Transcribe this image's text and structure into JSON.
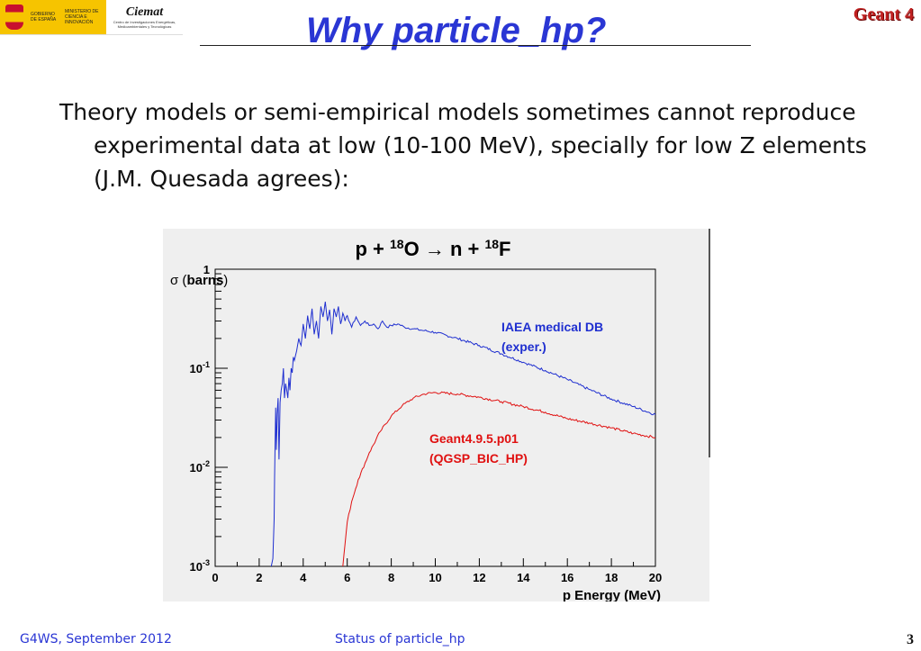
{
  "header": {
    "logo_gob_text": "GOBIERNO DE ESPAÑA",
    "logo_min_text": "MINISTERIO DE CIENCIA E INNOVACIÓN",
    "logo_ciemat": "Ciemat",
    "logo_ciemat_sub": "Centro de Investigaciones Energéticas, Medioambientales y Tecnológicas",
    "title": "Why particle_hp?",
    "brand": "Geant 4"
  },
  "body": {
    "text": "Theory models or semi-empirical models sometimes cannot reproduce experimental data at low (10-100 MeV), specially for low Z elements (J.M. Quesada agrees):"
  },
  "footer": {
    "left": "G4WS, September 2012",
    "center": "Status of particle_hp",
    "page": "3"
  },
  "colors": {
    "title": "#2a36d4",
    "brand": "#c02020",
    "exp": "#1f2fd0",
    "sim": "#e01010",
    "footer": "#2a36d4"
  },
  "chart_data": {
    "type": "line",
    "title": "p + 18O → n + 18F",
    "title_parts": {
      "a": "p + ",
      "sup1": "18",
      "b": "O ",
      "arrow": "→",
      "c": " n + ",
      "sup2": "18",
      "d": "F"
    },
    "xlabel": "p Energy (MeV)",
    "ylabel": "σ (barns)",
    "ylabel_parts": {
      "sym": "σ",
      "unit": "barns"
    },
    "xlim": [
      0,
      20
    ],
    "ylim": [
      0.001,
      1
    ],
    "yscale": "log",
    "grid": false,
    "xticks": [
      "0",
      "2",
      "4",
      "6",
      "8",
      "10",
      "12",
      "14",
      "16",
      "18",
      "20"
    ],
    "yticks": [
      {
        "value": 1,
        "base": "1",
        "exp": ""
      },
      {
        "value": 0.1,
        "base": "10",
        "exp": "-1"
      },
      {
        "value": 0.01,
        "base": "10",
        "exp": "-2"
      },
      {
        "value": 0.001,
        "base": "10",
        "exp": "-3"
      }
    ],
    "series": [
      {
        "name": "IAEA medical DB (exper.)",
        "label_lines": [
          "IAEA medical DB",
          "(exper.)"
        ],
        "color": "#1f2fd0",
        "x": [
          2.55,
          2.62,
          2.68,
          2.7,
          2.75,
          2.78,
          2.82,
          2.86,
          2.9,
          2.95,
          3.0,
          3.05,
          3.1,
          3.15,
          3.2,
          3.25,
          3.3,
          3.35,
          3.4,
          3.45,
          3.5,
          3.55,
          3.6,
          3.7,
          3.8,
          3.9,
          4.0,
          4.1,
          4.2,
          4.3,
          4.4,
          4.5,
          4.6,
          4.7,
          4.8,
          4.9,
          5.0,
          5.1,
          5.2,
          5.3,
          5.4,
          5.5,
          5.6,
          5.7,
          5.8,
          5.9,
          6.0,
          6.2,
          6.4,
          6.6,
          6.8,
          7.0,
          7.2,
          7.4,
          7.6,
          7.8,
          8.0,
          8.3,
          8.6,
          9.0,
          9.5,
          10,
          11,
          12,
          13,
          14,
          15,
          16,
          17,
          18,
          19,
          20
        ],
        "y": [
          0.001,
          0.0012,
          0.003,
          0.008,
          0.04,
          0.015,
          0.035,
          0.05,
          0.012,
          0.045,
          0.06,
          0.07,
          0.1,
          0.05,
          0.07,
          0.06,
          0.05,
          0.08,
          0.06,
          0.1,
          0.09,
          0.13,
          0.12,
          0.15,
          0.2,
          0.17,
          0.28,
          0.2,
          0.34,
          0.25,
          0.4,
          0.22,
          0.3,
          0.2,
          0.42,
          0.33,
          0.47,
          0.3,
          0.39,
          0.22,
          0.4,
          0.33,
          0.42,
          0.28,
          0.36,
          0.3,
          0.34,
          0.26,
          0.33,
          0.27,
          0.3,
          0.27,
          0.28,
          0.25,
          0.3,
          0.26,
          0.27,
          0.28,
          0.26,
          0.25,
          0.24,
          0.23,
          0.2,
          0.17,
          0.14,
          0.115,
          0.095,
          0.077,
          0.061,
          0.049,
          0.041,
          0.034
        ]
      },
      {
        "name": "Geant4.9.5.p01 (QGSP_BIC_HP)",
        "label_lines": [
          "Geant4.9.5.p01",
          "(QGSP_BIC_HP)"
        ],
        "color": "#e01010",
        "x": [
          5.8,
          5.9,
          6.0,
          6.2,
          6.5,
          7.0,
          7.5,
          8.0,
          8.5,
          9.0,
          9.5,
          10.0,
          11,
          12,
          13,
          14,
          15,
          16,
          17,
          18,
          19,
          20
        ],
        "y": [
          0.001,
          0.0017,
          0.0028,
          0.0045,
          0.0075,
          0.014,
          0.023,
          0.033,
          0.042,
          0.05,
          0.055,
          0.057,
          0.055,
          0.051,
          0.046,
          0.041,
          0.036,
          0.031,
          0.028,
          0.025,
          0.022,
          0.02
        ]
      }
    ]
  }
}
